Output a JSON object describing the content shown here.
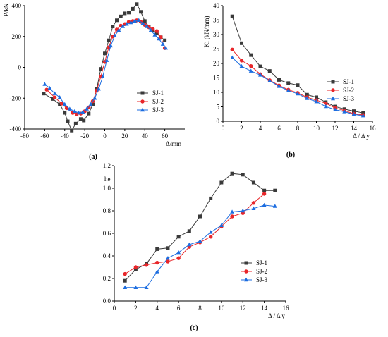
{
  "colors": {
    "SJ-1": "#3a3a3a",
    "SJ-2": "#e8262a",
    "SJ-3": "#1c6de0"
  },
  "chart_data": [
    {
      "panel": "(a)",
      "type": "line",
      "xlabel": "Δ/mm",
      "ylabel": "P/kN",
      "xlim": [
        -80,
        80
      ],
      "ylim": [
        -400,
        400
      ],
      "xticks": [
        -80,
        -60,
        -40,
        -20,
        0,
        20,
        40,
        60
      ],
      "yticks": [
        -400,
        -200,
        0,
        200,
        400
      ],
      "grid": false,
      "legend": "center-right",
      "series": [
        {
          "name": "SJ-1",
          "marker": "square",
          "x": [
            -61,
            -52,
            -45,
            -40,
            -37,
            -33,
            -29,
            -24,
            -21,
            -16,
            -12,
            -8,
            -4,
            0,
            4,
            8,
            12,
            16,
            20,
            24,
            28,
            32,
            36,
            40,
            44,
            48,
            52,
            56,
            60
          ],
          "y": [
            -170,
            -205,
            -240,
            -295,
            -350,
            -410,
            -365,
            -335,
            -345,
            -300,
            -240,
            -140,
            -10,
            90,
            175,
            265,
            305,
            330,
            350,
            355,
            380,
            410,
            360,
            300,
            265,
            240,
            220,
            195,
            175
          ]
        },
        {
          "name": "SJ-2",
          "marker": "circle",
          "x": [
            -58,
            -50,
            -43,
            -38,
            -32,
            -28,
            -24,
            -20,
            -16,
            -12,
            -8,
            -4,
            0,
            4,
            8,
            12,
            16,
            20,
            24,
            28,
            32,
            36,
            40,
            44,
            48,
            52,
            56,
            60
          ],
          "y": [
            -145,
            -195,
            -235,
            -265,
            -295,
            -305,
            -300,
            -285,
            -260,
            -220,
            -150,
            -60,
            35,
            130,
            200,
            245,
            270,
            280,
            295,
            300,
            305,
            295,
            275,
            260,
            250,
            235,
            195,
            125
          ]
        },
        {
          "name": "SJ-3",
          "marker": "triangle",
          "x": [
            -60,
            -55,
            -50,
            -45,
            -40,
            -35,
            -30,
            -26,
            -22,
            -18,
            -14,
            -10,
            -6,
            -2,
            2,
            6,
            10,
            14,
            18,
            22,
            26,
            30,
            34,
            38,
            42,
            46,
            50,
            54,
            58,
            61
          ],
          "y": [
            -110,
            -135,
            -170,
            -195,
            -240,
            -270,
            -285,
            -295,
            -290,
            -270,
            -240,
            -200,
            -140,
            -60,
            45,
            140,
            205,
            240,
            265,
            280,
            290,
            300,
            305,
            285,
            265,
            240,
            210,
            185,
            150,
            125
          ]
        }
      ]
    },
    {
      "panel": "(b)",
      "type": "line",
      "xlabel": "Δ / Δ y",
      "ylabel": "Ki (kN/mm)",
      "xlim": [
        0,
        16
      ],
      "ylim": [
        0,
        40
      ],
      "xticks": [
        0,
        2,
        4,
        6,
        8,
        10,
        12,
        14,
        16
      ],
      "yticks": [
        0,
        5,
        10,
        15,
        20,
        25,
        30,
        35,
        40
      ],
      "grid": false,
      "legend": "center-right",
      "series": [
        {
          "name": "SJ-1",
          "marker": "square",
          "x": [
            1,
            2,
            3,
            4,
            5,
            6,
            7,
            8,
            9,
            10,
            11,
            12,
            13,
            14,
            15
          ],
          "y": [
            36.3,
            27.0,
            22.9,
            19.0,
            17.4,
            14.3,
            13.2,
            12.5,
            9.2,
            8.3,
            6.6,
            5.1,
            4.2,
            3.5,
            2.9
          ]
        },
        {
          "name": "SJ-2",
          "marker": "circle",
          "x": [
            1,
            2,
            3,
            4,
            5,
            6,
            7,
            8,
            9,
            10,
            11,
            12,
            13,
            14,
            15
          ],
          "y": [
            24.8,
            21.0,
            19.1,
            16.3,
            14.2,
            12.4,
            10.9,
            9.8,
            8.3,
            7.3,
            6.2,
            4.6,
            3.7,
            2.6,
            2.2
          ]
        },
        {
          "name": "SJ-3",
          "marker": "triangle",
          "x": [
            1,
            2,
            3,
            4,
            5,
            6,
            7,
            8,
            9,
            10,
            11,
            12,
            13,
            14,
            15
          ],
          "y": [
            22.0,
            19.0,
            17.4,
            16.0,
            14.0,
            12.1,
            10.6,
            9.5,
            7.9,
            6.8,
            5.1,
            4.0,
            3.3,
            2.4,
            1.9
          ]
        }
      ]
    },
    {
      "panel": "(c)",
      "type": "line",
      "xlabel": "Δ / Δ y",
      "ylabel": "he",
      "xlim": [
        0,
        16
      ],
      "ylim": [
        0.0,
        1.2
      ],
      "xticks": [
        0,
        2,
        4,
        6,
        8,
        10,
        12,
        14,
        16
      ],
      "yticks": [
        0.0,
        0.2,
        0.4,
        0.6,
        0.8,
        1.0,
        1.2
      ],
      "grid": false,
      "legend": "center-right",
      "series": [
        {
          "name": "SJ-1",
          "marker": "square",
          "x": [
            1,
            2,
            3,
            4,
            5,
            6,
            7,
            8,
            9,
            10,
            11,
            12,
            13,
            14,
            15
          ],
          "y": [
            0.18,
            0.28,
            0.33,
            0.46,
            0.47,
            0.57,
            0.62,
            0.75,
            0.91,
            1.05,
            1.13,
            1.12,
            1.05,
            0.98,
            0.98
          ]
        },
        {
          "name": "SJ-2",
          "marker": "circle",
          "x": [
            1,
            2,
            3,
            4,
            5,
            6,
            7,
            8,
            9,
            10,
            11,
            12,
            13,
            14
          ],
          "y": [
            0.24,
            0.3,
            0.32,
            0.34,
            0.35,
            0.38,
            0.48,
            0.52,
            0.57,
            0.66,
            0.75,
            0.78,
            0.87,
            0.95
          ]
        },
        {
          "name": "SJ-3",
          "marker": "triangle",
          "x": [
            1,
            2,
            3,
            4,
            5,
            6,
            7,
            8,
            9,
            10,
            11,
            12,
            13,
            14,
            15
          ],
          "y": [
            0.12,
            0.12,
            0.12,
            0.26,
            0.38,
            0.43,
            0.5,
            0.53,
            0.61,
            0.67,
            0.79,
            0.8,
            0.82,
            0.85,
            0.84
          ]
        }
      ]
    }
  ]
}
